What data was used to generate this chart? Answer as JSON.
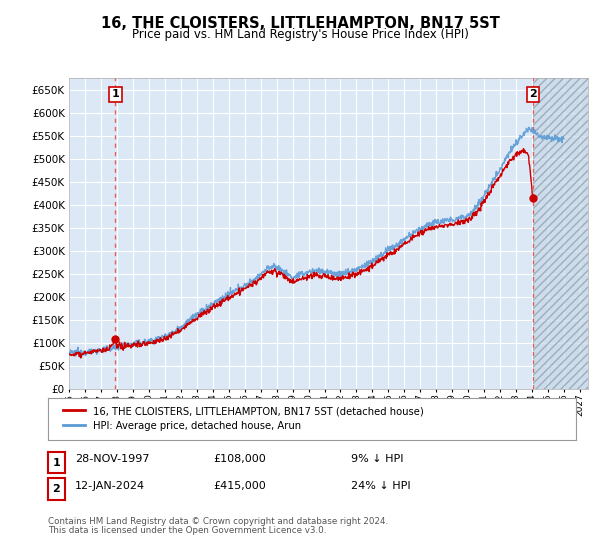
{
  "title": "16, THE CLOISTERS, LITTLEHAMPTON, BN17 5ST",
  "subtitle": "Price paid vs. HM Land Registry's House Price Index (HPI)",
  "background_color": "#ffffff",
  "plot_bg_color": "#dce8f5",
  "grid_color": "#ffffff",
  "ylim": [
    0,
    675000
  ],
  "yticks": [
    0,
    50000,
    100000,
    150000,
    200000,
    250000,
    300000,
    350000,
    400000,
    450000,
    500000,
    550000,
    600000,
    650000
  ],
  "xlim_start": 1995.0,
  "xlim_end": 2027.5,
  "xticks": [
    1995,
    1996,
    1997,
    1998,
    1999,
    2000,
    2001,
    2002,
    2003,
    2004,
    2005,
    2006,
    2007,
    2008,
    2009,
    2010,
    2011,
    2012,
    2013,
    2014,
    2015,
    2016,
    2017,
    2018,
    2019,
    2020,
    2021,
    2022,
    2023,
    2024,
    2025,
    2026,
    2027
  ],
  "legend_label_red": "16, THE CLOISTERS, LITTLEHAMPTON, BN17 5ST (detached house)",
  "legend_label_blue": "HPI: Average price, detached house, Arun",
  "sale1_x": 1997.91,
  "sale1_y": 108000,
  "sale1_label": "1",
  "sale2_x": 2024.04,
  "sale2_y": 415000,
  "sale2_label": "2",
  "footer_line1": "Contains HM Land Registry data © Crown copyright and database right 2024.",
  "footer_line2": "This data is licensed under the Open Government Licence v3.0.",
  "table_row1": [
    "1",
    "28-NOV-1997",
    "£108,000",
    "9% ↓ HPI"
  ],
  "table_row2": [
    "2",
    "12-JAN-2024",
    "£415,000",
    "24% ↓ HPI"
  ],
  "hpi_color": "#5b9bd5",
  "price_color": "#cc0000",
  "dot_color": "#cc0000",
  "vline_color": "#e06060"
}
